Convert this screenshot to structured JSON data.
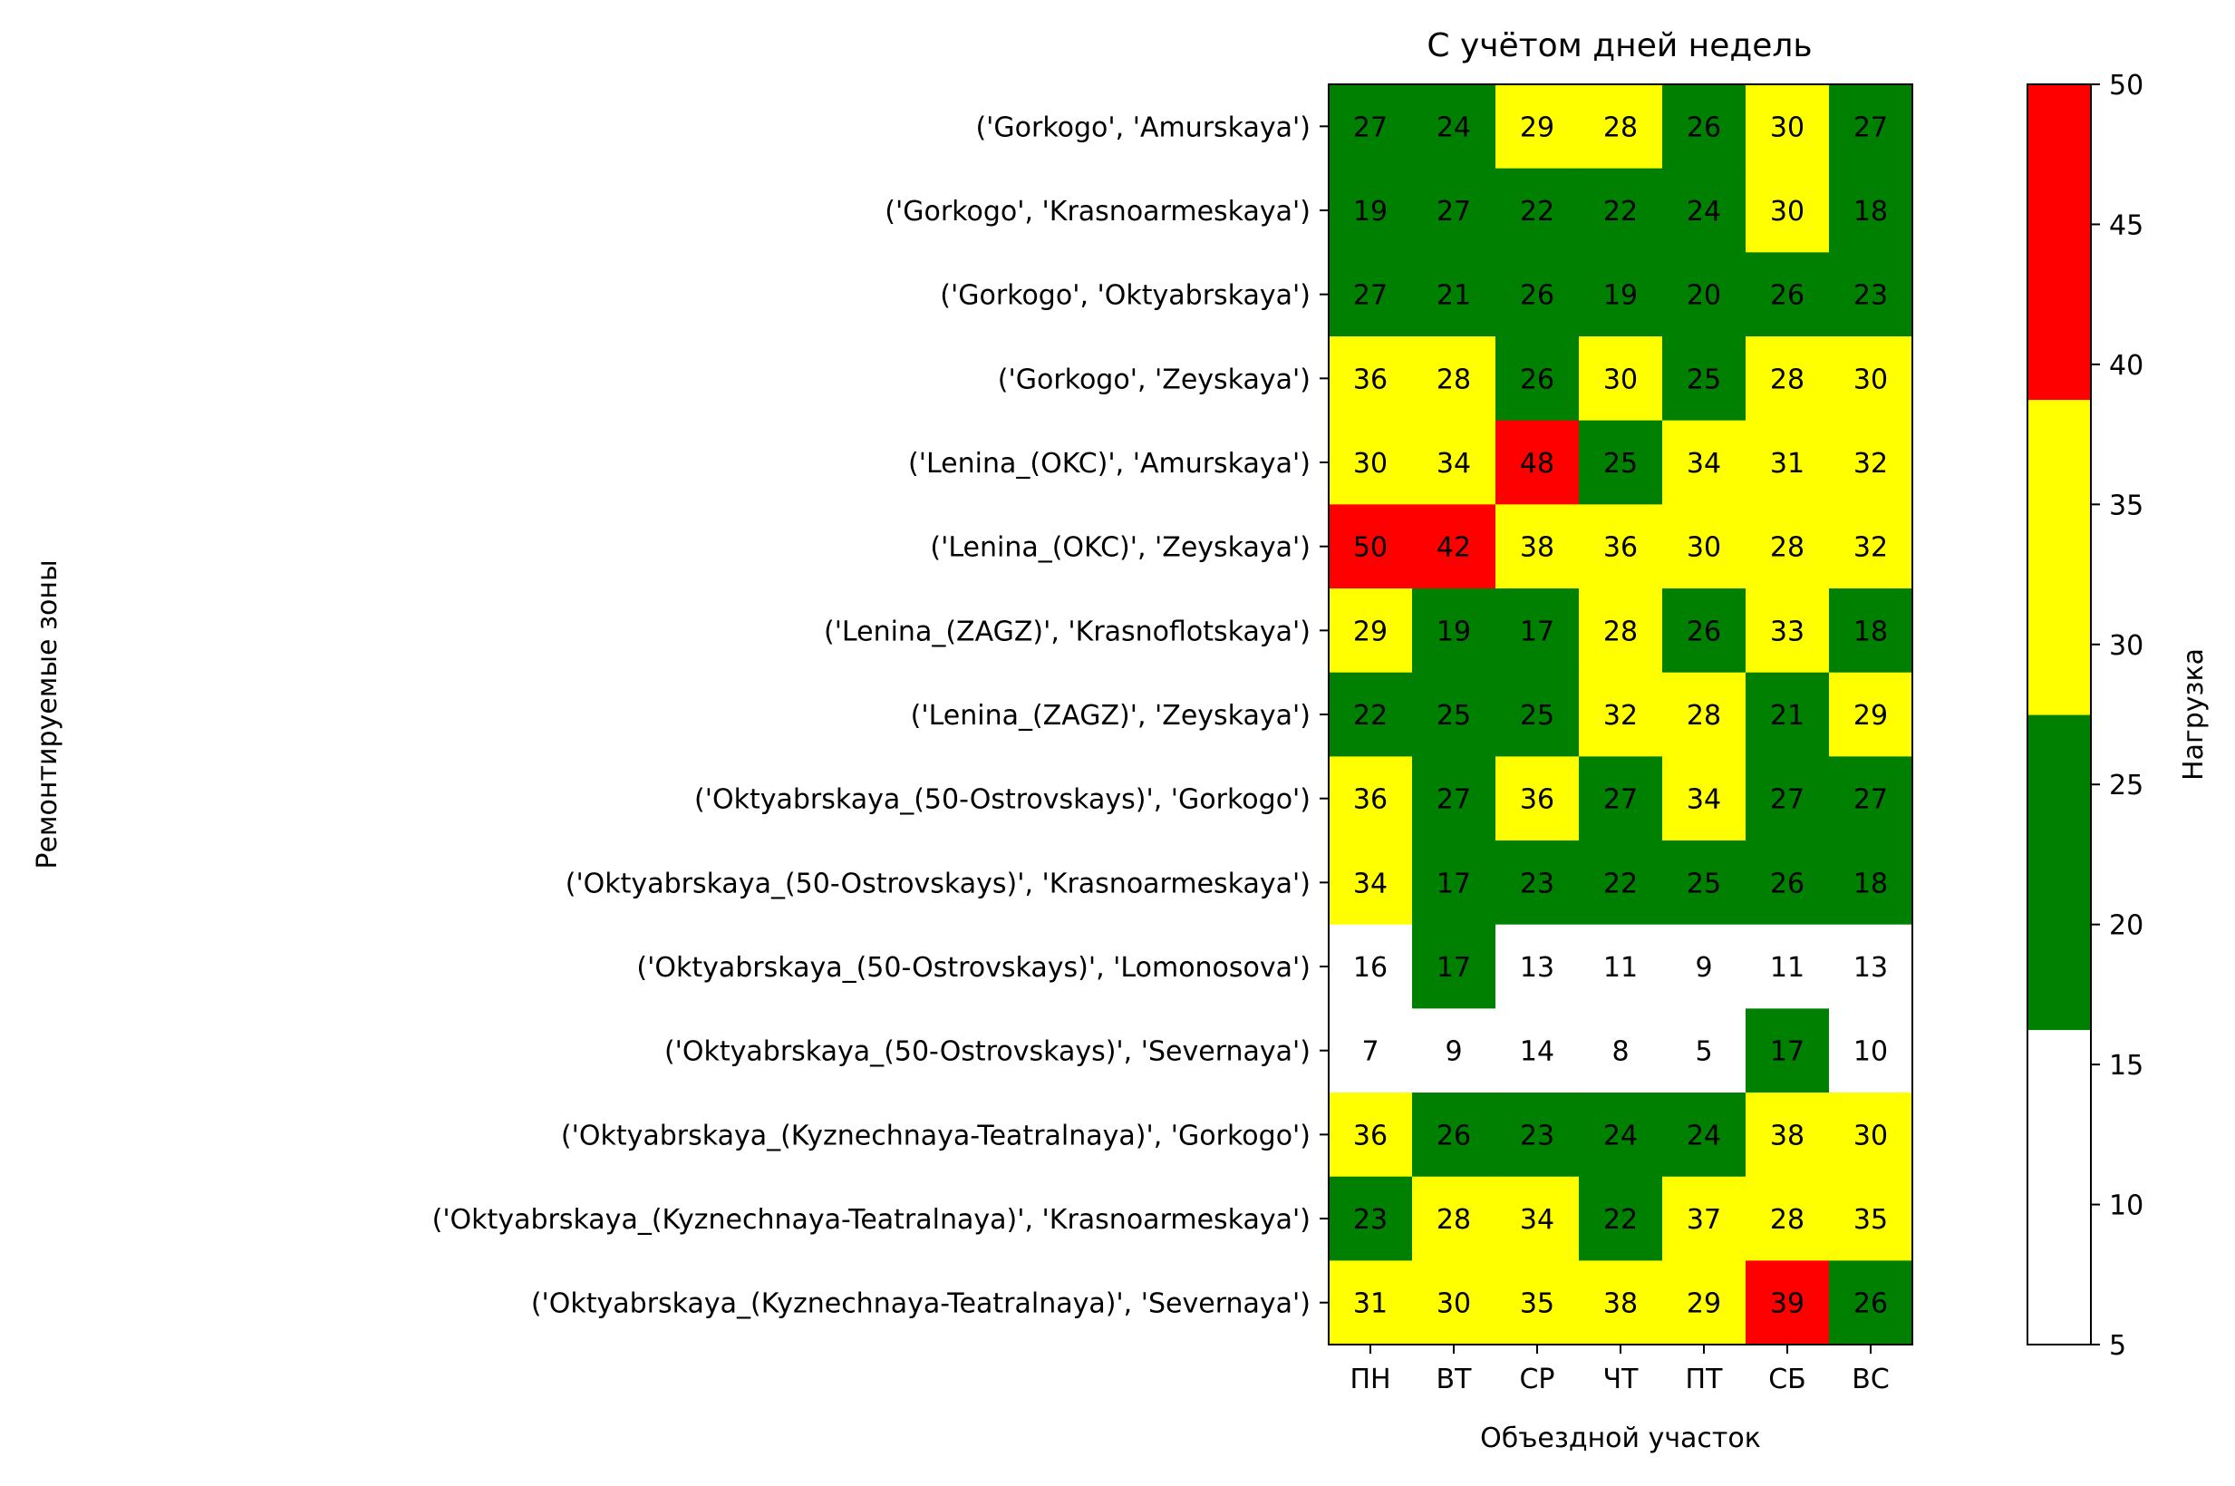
{
  "chart_data": {
    "type": "heatmap",
    "title": "С учётом дней недель",
    "xlabel": "Объездной участок",
    "ylabel": "Ремонтируемые зоны",
    "x_categories": [
      "ПН",
      "ВТ",
      "СР",
      "ЧТ",
      "ПТ",
      "СБ",
      "ВС"
    ],
    "y_categories": [
      "('Gorkogo', 'Amurskaya')",
      "('Gorkogo', 'Krasnoarmeskaya')",
      "('Gorkogo', 'Oktyabrskaya')",
      "('Gorkogo', 'Zeyskaya')",
      "('Lenina_(OKC)', 'Amurskaya')",
      "('Lenina_(OKC)', 'Zeyskaya')",
      "('Lenina_(ZAGZ)', 'Krasnoflotskaya')",
      "('Lenina_(ZAGZ)', 'Zeyskaya')",
      "('Oktyabrskaya_(50-Ostrovskays)', 'Gorkogo')",
      "('Oktyabrskaya_(50-Ostrovskays)', 'Krasnoarmeskaya')",
      "('Oktyabrskaya_(50-Ostrovskays)', 'Lomonosova')",
      "('Oktyabrskaya_(50-Ostrovskays)', 'Severnaya')",
      "('Oktyabrskaya_(Kyznechnaya-Teatralnaya)', 'Gorkogo')",
      "('Oktyabrskaya_(Kyznechnaya-Teatralnaya)', 'Krasnoarmeskaya')",
      "('Oktyabrskaya_(Kyznechnaya-Teatralnaya)', 'Severnaya')"
    ],
    "values": [
      [
        27,
        24,
        29,
        28,
        26,
        30,
        27
      ],
      [
        19,
        27,
        22,
        22,
        24,
        30,
        18
      ],
      [
        27,
        21,
        26,
        19,
        20,
        26,
        23
      ],
      [
        36,
        28,
        26,
        30,
        25,
        28,
        30
      ],
      [
        30,
        34,
        48,
        25,
        34,
        31,
        32
      ],
      [
        50,
        42,
        38,
        36,
        30,
        28,
        32
      ],
      [
        29,
        19,
        17,
        28,
        26,
        33,
        18
      ],
      [
        22,
        25,
        25,
        32,
        28,
        21,
        29
      ],
      [
        36,
        27,
        36,
        27,
        34,
        27,
        27
      ],
      [
        34,
        17,
        23,
        22,
        25,
        26,
        18
      ],
      [
        16,
        17,
        13,
        11,
        9,
        11,
        13
      ],
      [
        7,
        9,
        14,
        8,
        5,
        17,
        10
      ],
      [
        36,
        26,
        23,
        24,
        24,
        38,
        30
      ],
      [
        23,
        28,
        34,
        22,
        37,
        28,
        35
      ],
      [
        31,
        30,
        35,
        38,
        29,
        39,
        26
      ]
    ],
    "colorbar": {
      "label": "Нагрузка",
      "min": 5,
      "max": 50,
      "ticks": [
        5,
        10,
        15,
        20,
        25,
        30,
        35,
        40,
        45,
        50
      ],
      "bins": [
        {
          "from": 5,
          "to": 16.25,
          "color": "#ffffff"
        },
        {
          "from": 16.25,
          "to": 27.5,
          "color": "#008000"
        },
        {
          "from": 27.5,
          "to": 38.75,
          "color": "#ffff00"
        },
        {
          "from": 38.75,
          "to": 50,
          "color": "#ff0000"
        }
      ]
    }
  }
}
